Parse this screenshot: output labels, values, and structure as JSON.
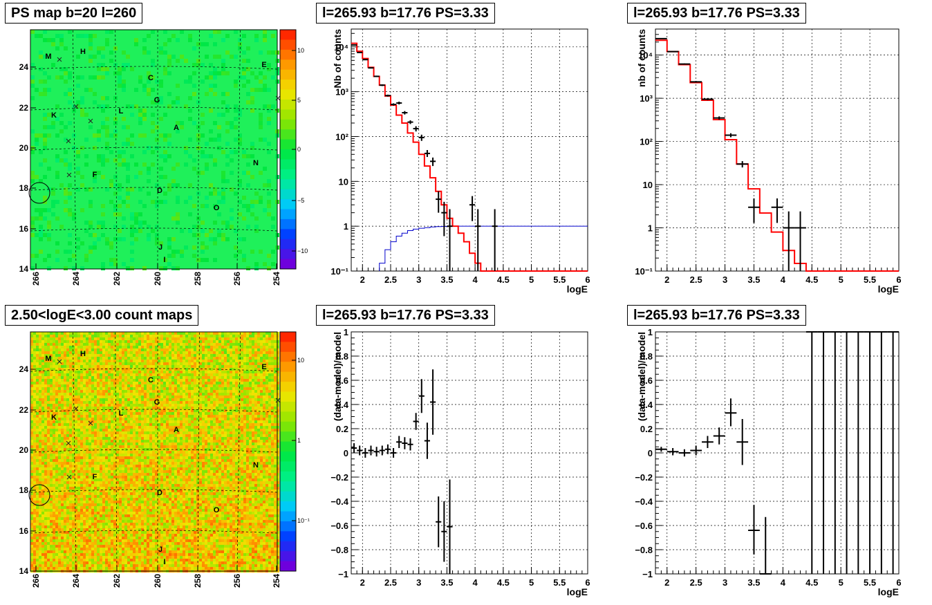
{
  "colors": {
    "red_model": "#ff0000",
    "blue_curve": "#0000cc",
    "data": "#000000",
    "grid": "#000000"
  },
  "maps": [
    {
      "title": "PS map b=20 l=260",
      "palette": "green-flat",
      "xticks": [
        "266",
        "264",
        "262",
        "260",
        "258",
        "256",
        "254"
      ],
      "yticks": [
        "14",
        "16",
        "18",
        "20",
        "22",
        "24"
      ],
      "colorbar_ticks": [
        "10",
        "5",
        "0",
        "−5",
        "−10"
      ],
      "source_labels": [
        "M",
        "H",
        "E",
        "C",
        "G",
        "K",
        "L",
        "A",
        "N",
        "F",
        "D",
        "O",
        "J",
        "I"
      ]
    },
    {
      "title": "2.50<logE<3.00 count maps",
      "palette": "orange-noisy",
      "xticks": [
        "266",
        "264",
        "262",
        "260",
        "258",
        "256",
        "254"
      ],
      "yticks": [
        "14",
        "16",
        "18",
        "20",
        "22",
        "24"
      ],
      "colorbar_ticks": [
        "10",
        "1",
        "10⁻¹"
      ],
      "source_labels": [
        "M",
        "H",
        "E",
        "C",
        "G",
        "K",
        "L",
        "A",
        "N",
        "F",
        "D",
        "O",
        "J",
        "I"
      ]
    }
  ],
  "chart_data": [
    {
      "type": "line",
      "title": "l=265.93 b=17.76 PS=3.33",
      "xlabel": "logE",
      "ylabel": "Nb of counts",
      "yscale": "log",
      "xlim": [
        1.8,
        6
      ],
      "ylim": [
        0.1,
        25000
      ],
      "xticks": [
        "2",
        "2.5",
        "3",
        "3.5",
        "4",
        "4.5",
        "5",
        "5.5",
        "6"
      ],
      "yticks": [
        "10⁻¹",
        "1",
        "10",
        "10²",
        "10³",
        "10⁴"
      ],
      "model_edges": [
        1.8,
        1.9,
        2.0,
        2.1,
        2.2,
        2.3,
        2.4,
        2.5,
        2.6,
        2.7,
        2.8,
        2.9,
        3.0,
        3.1,
        3.2,
        3.3,
        3.4,
        3.5,
        3.6,
        3.7,
        3.8,
        3.9,
        4.0,
        4.1,
        4.2,
        6.0
      ],
      "model_values": [
        12000,
        8000,
        5500,
        3500,
        2200,
        1400,
        800,
        500,
        300,
        200,
        120,
        75,
        40,
        22,
        12,
        6,
        3,
        1.5,
        1,
        0.7,
        0.45,
        0.25,
        0.15,
        0.1,
        0.1
      ],
      "efficiency_x": [
        2.3,
        2.4,
        2.5,
        2.6,
        2.7,
        2.8,
        2.9,
        3.0,
        3.1,
        3.2,
        3.3,
        3.4,
        3.5,
        6.0
      ],
      "efficiency_y": [
        0.15,
        0.3,
        0.45,
        0.6,
        0.7,
        0.8,
        0.86,
        0.9,
        0.93,
        0.96,
        0.98,
        0.99,
        1.0,
        1.0
      ],
      "points": [
        {
          "x": 1.85,
          "y": 11000,
          "ylo": 10800,
          "yhi": 11200
        },
        {
          "x": 1.95,
          "y": 7500,
          "ylo": 7350,
          "yhi": 7650
        },
        {
          "x": 2.05,
          "y": 5200,
          "ylo": 5050,
          "yhi": 5350
        },
        {
          "x": 2.15,
          "y": 3400,
          "ylo": 3300,
          "yhi": 3500
        },
        {
          "x": 2.25,
          "y": 2200,
          "ylo": 2120,
          "yhi": 2280
        },
        {
          "x": 2.35,
          "y": 1400,
          "ylo": 1340,
          "yhi": 1460
        },
        {
          "x": 2.45,
          "y": 820,
          "ylo": 780,
          "yhi": 860
        },
        {
          "x": 2.55,
          "y": 520,
          "ylo": 490,
          "yhi": 550
        },
        {
          "x": 2.65,
          "y": 560,
          "ylo": 520,
          "yhi": 600
        },
        {
          "x": 2.75,
          "y": 340,
          "ylo": 310,
          "yhi": 370
        },
        {
          "x": 2.85,
          "y": 210,
          "ylo": 190,
          "yhi": 230
        },
        {
          "x": 2.95,
          "y": 150,
          "ylo": 130,
          "yhi": 170
        },
        {
          "x": 3.05,
          "y": 95,
          "ylo": 80,
          "yhi": 110
        },
        {
          "x": 3.15,
          "y": 42,
          "ylo": 35,
          "yhi": 50
        },
        {
          "x": 3.25,
          "y": 28,
          "ylo": 22,
          "yhi": 34
        },
        {
          "x": 3.35,
          "y": 4,
          "ylo": 2,
          "yhi": 6
        },
        {
          "x": 3.45,
          "y": 2,
          "ylo": 0.6,
          "yhi": 3.5
        },
        {
          "x": 3.55,
          "y": 1,
          "ylo": 0.1,
          "yhi": 2.4
        },
        {
          "x": 3.95,
          "y": 3,
          "ylo": 1.3,
          "yhi": 4.7
        },
        {
          "x": 4.05,
          "y": 1,
          "ylo": 0.1,
          "yhi": 2.4
        },
        {
          "x": 4.35,
          "y": 1,
          "ylo": 0.1,
          "yhi": 2.4
        }
      ],
      "grid": true
    },
    {
      "type": "line",
      "title": "l=265.93 b=17.76 PS=3.33",
      "xlabel": "logE",
      "ylabel": "nb of counts",
      "yscale": "log",
      "xlim": [
        1.8,
        6
      ],
      "ylim": [
        0.1,
        40000
      ],
      "xticks": [
        "2",
        "2.5",
        "3",
        "3.5",
        "4",
        "4.5",
        "5",
        "5.5",
        "6"
      ],
      "yticks": [
        "10⁻¹",
        "1",
        "10",
        "10²",
        "10³",
        "10⁴"
      ],
      "model_edges": [
        1.8,
        2.0,
        2.2,
        2.4,
        2.6,
        2.8,
        3.0,
        3.2,
        3.4,
        3.6,
        3.8,
        4.0,
        4.2,
        4.4,
        6.0
      ],
      "model_values": [
        22000,
        12000,
        6000,
        2300,
        900,
        320,
        110,
        30,
        8,
        2.2,
        0.8,
        0.3,
        0.15,
        0.1
      ],
      "points": [
        {
          "x": 1.9,
          "y": 24000,
          "ylo": 23600,
          "yhi": 24400
        },
        {
          "x": 2.1,
          "y": 12000,
          "ylo": 11700,
          "yhi": 12300
        },
        {
          "x": 2.3,
          "y": 6200,
          "ylo": 6000,
          "yhi": 6400
        },
        {
          "x": 2.5,
          "y": 2400,
          "ylo": 2300,
          "yhi": 2500
        },
        {
          "x": 2.7,
          "y": 950,
          "ylo": 900,
          "yhi": 1000
        },
        {
          "x": 2.9,
          "y": 350,
          "ylo": 320,
          "yhi": 380
        },
        {
          "x": 3.1,
          "y": 140,
          "ylo": 125,
          "yhi": 155
        },
        {
          "x": 3.3,
          "y": 30,
          "ylo": 25,
          "yhi": 35
        },
        {
          "x": 3.5,
          "y": 3,
          "ylo": 1.3,
          "yhi": 4.8
        },
        {
          "x": 3.9,
          "y": 3,
          "ylo": 1.3,
          "yhi": 4.8
        },
        {
          "x": 4.1,
          "y": 1,
          "ylo": 0.1,
          "yhi": 2.4
        },
        {
          "x": 4.3,
          "y": 1,
          "ylo": 0.1,
          "yhi": 2.4
        }
      ],
      "grid": true
    },
    {
      "type": "scatter",
      "title": "l=265.93 b=17.76 PS=3.33",
      "xlabel": "logE",
      "ylabel": "(data-model)/model",
      "yscale": "linear",
      "xlim": [
        1.8,
        6
      ],
      "ylim": [
        -1,
        1
      ],
      "xticks": [
        "2",
        "2.5",
        "3",
        "3.5",
        "4",
        "4.5",
        "5",
        "5.5",
        "6"
      ],
      "yticks": [
        "−1",
        "−0.8",
        "−0.6",
        "−0.4",
        "−0.2",
        "0",
        "0.2",
        "0.4",
        "0.6",
        "0.8",
        "1"
      ],
      "ytick_values": [
        -1,
        -0.8,
        -0.6,
        -0.4,
        -0.2,
        0,
        0.2,
        0.4,
        0.6,
        0.8,
        1
      ],
      "points": [
        {
          "x": 1.85,
          "y": 0.04,
          "ylo": 0.0,
          "yhi": 0.08
        },
        {
          "x": 1.95,
          "y": 0.02,
          "ylo": -0.02,
          "yhi": 0.06
        },
        {
          "x": 2.05,
          "y": 0.0,
          "ylo": -0.04,
          "yhi": 0.04
        },
        {
          "x": 2.15,
          "y": 0.02,
          "ylo": -0.02,
          "yhi": 0.06
        },
        {
          "x": 2.25,
          "y": 0.01,
          "ylo": -0.03,
          "yhi": 0.05
        },
        {
          "x": 2.35,
          "y": 0.02,
          "ylo": -0.02,
          "yhi": 0.06
        },
        {
          "x": 2.45,
          "y": 0.03,
          "ylo": -0.01,
          "yhi": 0.07
        },
        {
          "x": 2.55,
          "y": 0.0,
          "ylo": -0.04,
          "yhi": 0.04
        },
        {
          "x": 2.65,
          "y": 0.09,
          "ylo": 0.04,
          "yhi": 0.14
        },
        {
          "x": 2.75,
          "y": 0.08,
          "ylo": 0.03,
          "yhi": 0.13
        },
        {
          "x": 2.85,
          "y": 0.07,
          "ylo": 0.02,
          "yhi": 0.12
        },
        {
          "x": 2.95,
          "y": 0.26,
          "ylo": 0.19,
          "yhi": 0.33
        },
        {
          "x": 3.05,
          "y": 0.47,
          "ylo": 0.33,
          "yhi": 0.61
        },
        {
          "x": 3.15,
          "y": 0.1,
          "ylo": -0.05,
          "yhi": 0.25
        },
        {
          "x": 3.25,
          "y": 0.42,
          "ylo": 0.15,
          "yhi": 0.69
        },
        {
          "x": 3.35,
          "y": -0.57,
          "ylo": -0.78,
          "yhi": -0.36
        },
        {
          "x": 3.45,
          "y": -0.65,
          "ylo": -0.9,
          "yhi": -0.4
        },
        {
          "x": 3.55,
          "y": -0.61,
          "ylo": -1.0,
          "yhi": -0.22
        }
      ],
      "grid": true
    },
    {
      "type": "scatter",
      "title": "l=265.93 b=17.76 PS=3.33",
      "xlabel": "logE",
      "ylabel": "(data-model)/model",
      "yscale": "linear",
      "xlim": [
        1.8,
        6
      ],
      "ylim": [
        -1,
        1
      ],
      "xticks": [
        "2",
        "2.5",
        "3",
        "3.5",
        "4",
        "4.5",
        "5",
        "5.5",
        "6"
      ],
      "yticks": [
        "−1",
        "−0.8",
        "−0.6",
        "−0.4",
        "−0.2",
        "0",
        "0.2",
        "0.4",
        "0.6",
        "0.8",
        "1"
      ],
      "ytick_values": [
        -1,
        -0.8,
        -0.6,
        -0.4,
        -0.2,
        0,
        0.2,
        0.4,
        0.6,
        0.8,
        1
      ],
      "points": [
        {
          "x": 1.9,
          "y": 0.03,
          "ylo": 0.01,
          "yhi": 0.05
        },
        {
          "x": 2.1,
          "y": 0.01,
          "ylo": -0.02,
          "yhi": 0.04
        },
        {
          "x": 2.3,
          "y": 0.0,
          "ylo": -0.03,
          "yhi": 0.03
        },
        {
          "x": 2.5,
          "y": 0.02,
          "ylo": -0.02,
          "yhi": 0.06
        },
        {
          "x": 2.7,
          "y": 0.09,
          "ylo": 0.04,
          "yhi": 0.14
        },
        {
          "x": 2.9,
          "y": 0.14,
          "ylo": 0.07,
          "yhi": 0.21
        },
        {
          "x": 3.1,
          "y": 0.33,
          "ylo": 0.22,
          "yhi": 0.45
        },
        {
          "x": 3.3,
          "y": 0.09,
          "ylo": -0.1,
          "yhi": 0.28
        },
        {
          "x": 3.5,
          "y": -0.64,
          "ylo": -0.84,
          "yhi": -0.43
        },
        {
          "x": 3.7,
          "y": -1.0,
          "ylo": -1.0,
          "yhi": -0.53
        },
        {
          "x": 4.5,
          "y": 1.0,
          "ylo": -1.0,
          "yhi": 1.0
        },
        {
          "x": 4.7,
          "y": 1.0,
          "ylo": -1.0,
          "yhi": 1.0
        },
        {
          "x": 4.9,
          "y": 1.0,
          "ylo": -1.0,
          "yhi": 1.0
        },
        {
          "x": 5.1,
          "y": 1.0,
          "ylo": -1.0,
          "yhi": 1.0
        },
        {
          "x": 5.3,
          "y": 1.0,
          "ylo": -1.0,
          "yhi": 1.0
        },
        {
          "x": 5.5,
          "y": 1.0,
          "ylo": -1.0,
          "yhi": 1.0
        },
        {
          "x": 5.7,
          "y": 1.0,
          "ylo": -1.0,
          "yhi": 1.0
        },
        {
          "x": 5.9,
          "y": 1.0,
          "ylo": -1.0,
          "yhi": 1.0
        }
      ],
      "grid": true
    }
  ]
}
